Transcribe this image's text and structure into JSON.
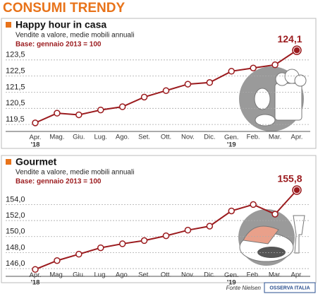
{
  "header": {
    "title": "CONSUMI TRENDY"
  },
  "chart_data": [
    {
      "type": "line",
      "title": "Happy hour in casa",
      "subtitle": "Vendite a valore, medie mobili annuali",
      "note": "Base: gennaio 2013 = 100",
      "categories": [
        "Apr. '18",
        "Mag.",
        "Giu.",
        "Lug.",
        "Ago.",
        "Set.",
        "Ott.",
        "Nov.",
        "Dic.",
        "Gen. '19",
        "Feb.",
        "Mar.",
        "Apr."
      ],
      "values": [
        119.6,
        120.2,
        120.1,
        120.4,
        120.6,
        121.2,
        121.6,
        122.0,
        122.1,
        122.8,
        123.0,
        123.2,
        124.1
      ],
      "value_labels": [
        null,
        null,
        null,
        null,
        null,
        null,
        null,
        null,
        null,
        null,
        null,
        null,
        "124,1"
      ],
      "color": "#9b1b1e",
      "ylim": [
        119.2,
        124.5
      ],
      "yticks": [
        {
          "value": 119.5,
          "label": "119,5"
        },
        {
          "value": 120.5,
          "label": "120,5"
        },
        {
          "value": 121.5,
          "label": "121,5"
        },
        {
          "value": 122.5,
          "label": "122,5"
        },
        {
          "value": 123.5,
          "label": "123,5"
        }
      ],
      "grid": true
    },
    {
      "type": "line",
      "title": "Gourmet",
      "subtitle": "Vendite a valore, medie mobili annuali",
      "note": "Base: gennaio 2013 = 100",
      "categories": [
        "Apr. '18",
        "Mag.",
        "Giu.",
        "Lug.",
        "Ago.",
        "Set.",
        "Ott.",
        "Nov.",
        "Dic.",
        "Gen. '19",
        "Feb.",
        "Mar.",
        "Apr."
      ],
      "values": [
        145.9,
        147.0,
        147.8,
        148.6,
        149.1,
        149.5,
        150.1,
        150.8,
        151.3,
        153.2,
        154.0,
        152.8,
        155.8
      ],
      "value_labels": [
        null,
        null,
        null,
        null,
        null,
        null,
        null,
        null,
        null,
        null,
        null,
        null,
        "155,8"
      ],
      "color": "#9b1b1e",
      "ylim": [
        145.3,
        157.3
      ],
      "yticks": [
        {
          "value": 146,
          "label": "146,0"
        },
        {
          "value": 148,
          "label": "148,0"
        },
        {
          "value": 150,
          "label": "150,0"
        },
        {
          "value": 152,
          "label": "152,0"
        },
        {
          "value": 154,
          "label": "154,0"
        }
      ],
      "grid": true
    }
  ],
  "footer": {
    "source": "Fonte Nielsen",
    "logo": "OSSERVA ITALIA"
  }
}
